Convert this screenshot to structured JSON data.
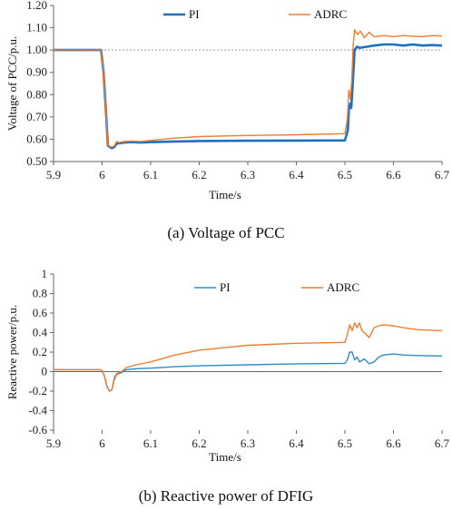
{
  "chart_data": [
    {
      "type": "line",
      "caption": "(a) Voltage of PCC",
      "xlabel": "Time/s",
      "ylabel": "Voltage of PCC/p.u.",
      "xlim": [
        5.9,
        6.7
      ],
      "ylim": [
        0.5,
        1.2
      ],
      "xticks": [
        5.9,
        6.0,
        6.1,
        6.2,
        6.3,
        6.4,
        6.5,
        6.6,
        6.7
      ],
      "xtick_labels": [
        "5.9",
        "6",
        "6.1",
        "6.2",
        "6.3",
        "6.4",
        "6.5",
        "6.6",
        "6.7"
      ],
      "yticks": [
        0.5,
        0.6,
        0.7,
        0.8,
        0.9,
        1.0,
        1.1,
        1.2
      ],
      "ytick_labels": [
        "0.50",
        "0.60",
        "0.70",
        "0.80",
        "0.90",
        "1.00",
        "1.10",
        "1.20"
      ],
      "reference_line": {
        "y": 1.0,
        "style": "dotted",
        "color": "#999999"
      },
      "legend": "top-right",
      "grid": false,
      "series": [
        {
          "name": "PI",
          "color": "#1f6fbf",
          "width": 2.6,
          "x": [
            5.9,
            5.998,
            6.003,
            6.008,
            6.012,
            6.02,
            6.025,
            6.03,
            6.035,
            6.045,
            6.06,
            6.08,
            6.1,
            6.15,
            6.2,
            6.3,
            6.4,
            6.5,
            6.506,
            6.508,
            6.511,
            6.513,
            6.516,
            6.52,
            6.525,
            6.53,
            6.545,
            6.56,
            6.58,
            6.6,
            6.62,
            6.64,
            6.66,
            6.68,
            6.7
          ],
          "y": [
            1.0,
            1.0,
            0.9,
            0.72,
            0.57,
            0.56,
            0.565,
            0.58,
            0.582,
            0.585,
            0.587,
            0.585,
            0.587,
            0.59,
            0.592,
            0.593,
            0.594,
            0.595,
            0.64,
            0.73,
            0.76,
            0.74,
            0.85,
            1.0,
            1.015,
            1.01,
            1.015,
            1.02,
            1.025,
            1.025,
            1.02,
            1.025,
            1.02,
            1.022,
            1.02
          ]
        },
        {
          "name": "ADRC",
          "color": "#ee7d31",
          "width": 1.4,
          "x": [
            5.9,
            5.998,
            6.003,
            6.008,
            6.012,
            6.02,
            6.025,
            6.03,
            6.035,
            6.045,
            6.06,
            6.08,
            6.1,
            6.15,
            6.2,
            6.3,
            6.4,
            6.5,
            6.505,
            6.508,
            6.511,
            6.514,
            6.517,
            6.52,
            6.526,
            6.532,
            6.54,
            6.55,
            6.56,
            6.58,
            6.6,
            6.62,
            6.64,
            6.66,
            6.68,
            6.7
          ],
          "y": [
            1.0,
            1.0,
            0.9,
            0.72,
            0.57,
            0.565,
            0.57,
            0.59,
            0.585,
            0.59,
            0.592,
            0.59,
            0.595,
            0.605,
            0.612,
            0.617,
            0.62,
            0.625,
            0.69,
            0.82,
            0.78,
            0.86,
            1.02,
            1.09,
            1.07,
            1.085,
            1.055,
            1.08,
            1.06,
            1.065,
            1.06,
            1.065,
            1.062,
            1.06,
            1.065,
            1.063
          ]
        }
      ]
    },
    {
      "type": "line",
      "caption": "(b) Reactive power of DFIG",
      "xlabel": "Time/s",
      "ylabel": "Reactive power/p.u.",
      "xlim": [
        5.9,
        6.7
      ],
      "ylim": [
        -0.6,
        1.0
      ],
      "xticks": [
        5.9,
        6.0,
        6.1,
        6.2,
        6.3,
        6.4,
        6.5,
        6.6,
        6.7
      ],
      "xtick_labels": [
        "5.9",
        "6",
        "6.1",
        "6.2",
        "6.3",
        "6.4",
        "6.5",
        "6.6",
        "6.7"
      ],
      "yticks": [
        -0.6,
        -0.4,
        -0.2,
        0,
        0.2,
        0.4,
        0.6,
        0.8,
        1.0
      ],
      "ytick_labels": [
        "-0.6",
        "-0.4",
        "-0.2",
        "0",
        "0.2",
        "0.4",
        "0.6",
        "0.8",
        "1"
      ],
      "legend": "top",
      "grid": false,
      "series": [
        {
          "name": "PI",
          "color": "#2e8bc9",
          "width": 1.4,
          "x": [
            5.9,
            5.995,
            6.0,
            6.005,
            6.01,
            6.015,
            6.02,
            6.025,
            6.03,
            6.04,
            6.05,
            6.07,
            6.1,
            6.15,
            6.2,
            6.3,
            6.4,
            6.5,
            6.505,
            6.51,
            6.515,
            6.52,
            6.525,
            6.53,
            6.54,
            6.55,
            6.56,
            6.57,
            6.58,
            6.6,
            6.62,
            6.65,
            6.7
          ],
          "y": [
            0.02,
            0.02,
            0.01,
            -0.05,
            -0.15,
            -0.2,
            -0.19,
            -0.08,
            -0.03,
            -0.01,
            0.02,
            0.03,
            0.035,
            0.05,
            0.06,
            0.07,
            0.08,
            0.085,
            0.12,
            0.2,
            0.2,
            0.12,
            0.15,
            0.1,
            0.13,
            0.08,
            0.1,
            0.15,
            0.17,
            0.18,
            0.17,
            0.165,
            0.16
          ]
        },
        {
          "name": "ADRC",
          "color": "#ee7d31",
          "width": 1.4,
          "x": [
            5.9,
            5.995,
            6.0,
            6.005,
            6.01,
            6.015,
            6.02,
            6.025,
            6.03,
            6.04,
            6.05,
            6.07,
            6.1,
            6.15,
            6.2,
            6.3,
            6.4,
            6.5,
            6.505,
            6.51,
            6.515,
            6.52,
            6.525,
            6.53,
            6.535,
            6.54,
            6.55,
            6.56,
            6.57,
            6.58,
            6.6,
            6.62,
            6.65,
            6.7
          ],
          "y": [
            0.02,
            0.02,
            0.01,
            -0.05,
            -0.15,
            -0.2,
            -0.19,
            -0.06,
            -0.02,
            0.0,
            0.04,
            0.07,
            0.1,
            0.17,
            0.22,
            0.27,
            0.29,
            0.3,
            0.38,
            0.48,
            0.42,
            0.5,
            0.45,
            0.5,
            0.42,
            0.4,
            0.35,
            0.45,
            0.47,
            0.48,
            0.47,
            0.45,
            0.43,
            0.42
          ]
        }
      ]
    }
  ]
}
